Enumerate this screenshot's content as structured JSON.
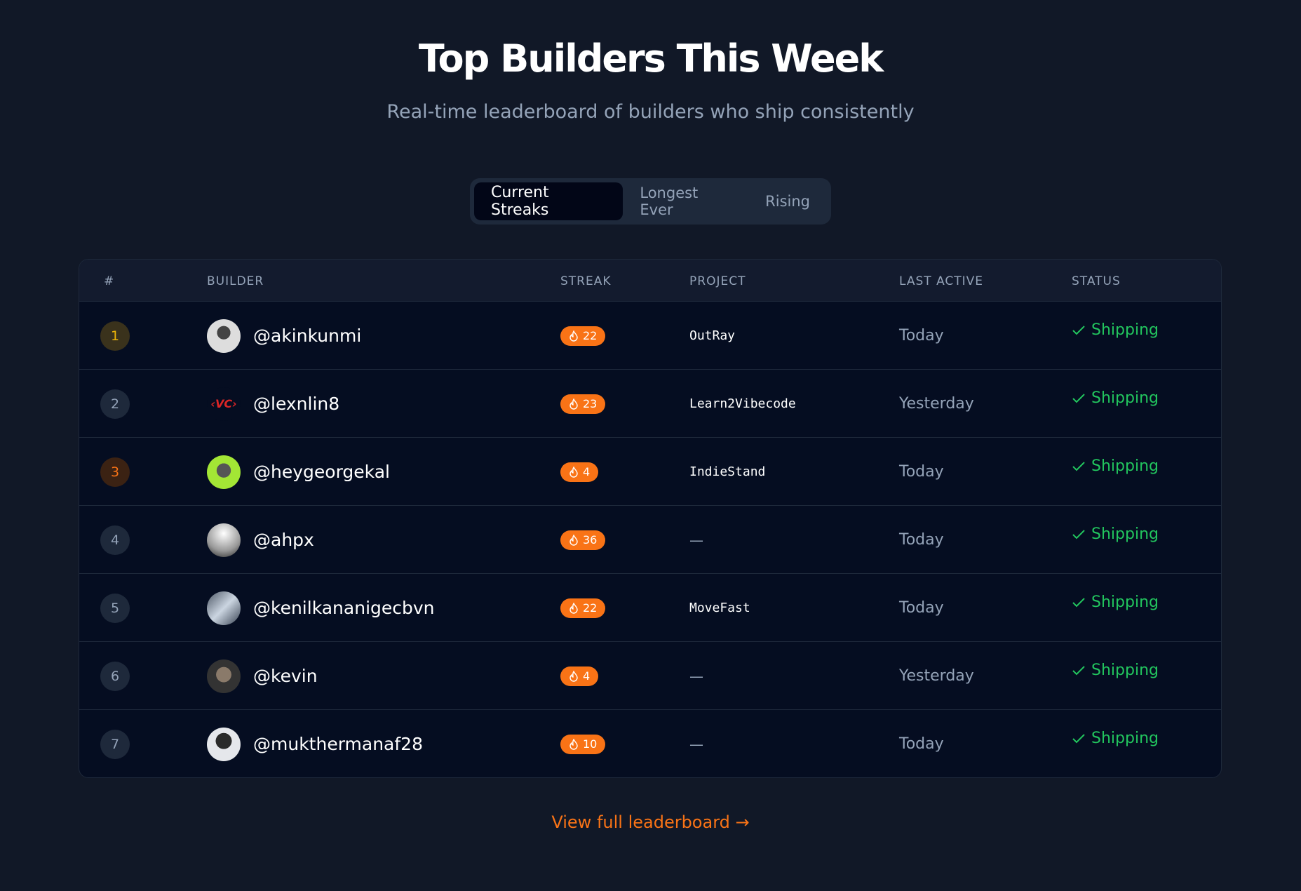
{
  "header": {
    "title": "Top Builders This Week",
    "subtitle": "Real-time leaderboard of builders who ship consistently"
  },
  "tabs": [
    {
      "label": "Current Streaks",
      "active": true
    },
    {
      "label": "Longest Ever",
      "active": false
    },
    {
      "label": "Rising",
      "active": false
    }
  ],
  "table": {
    "columns": [
      "#",
      "BUILDER",
      "STREAK",
      "PROJECT",
      "LAST ACTIVE",
      "STATUS"
    ],
    "rows": [
      {
        "rank": "1",
        "handle": "@akinkunmi",
        "streak": "22",
        "project": "OutRay",
        "last_active": "Today",
        "status": "Shipping"
      },
      {
        "rank": "2",
        "handle": "@lexnlin8",
        "streak": "23",
        "project": "Learn2Vibecode",
        "last_active": "Yesterday",
        "status": "Shipping"
      },
      {
        "rank": "3",
        "handle": "@heygeorgekal",
        "streak": "4",
        "project": "IndieStand",
        "last_active": "Today",
        "status": "Shipping"
      },
      {
        "rank": "4",
        "handle": "@ahpx",
        "streak": "36",
        "project": "—",
        "last_active": "Today",
        "status": "Shipping"
      },
      {
        "rank": "5",
        "handle": "@kenilkananigecbvn",
        "streak": "22",
        "project": "MoveFast",
        "last_active": "Today",
        "status": "Shipping"
      },
      {
        "rank": "6",
        "handle": "@kevin",
        "streak": "4",
        "project": "—",
        "last_active": "Yesterday",
        "status": "Shipping"
      },
      {
        "rank": "7",
        "handle": "@mukthermanaf28",
        "streak": "10",
        "project": "—",
        "last_active": "Today",
        "status": "Shipping"
      }
    ]
  },
  "footer": {
    "link": "View full leaderboard →"
  },
  "colors": {
    "accent": "#f97316",
    "success": "#22c55e",
    "gold": "#eab308",
    "background": "#111827"
  },
  "icons": {
    "streak": "flame-icon",
    "status": "check-icon"
  }
}
